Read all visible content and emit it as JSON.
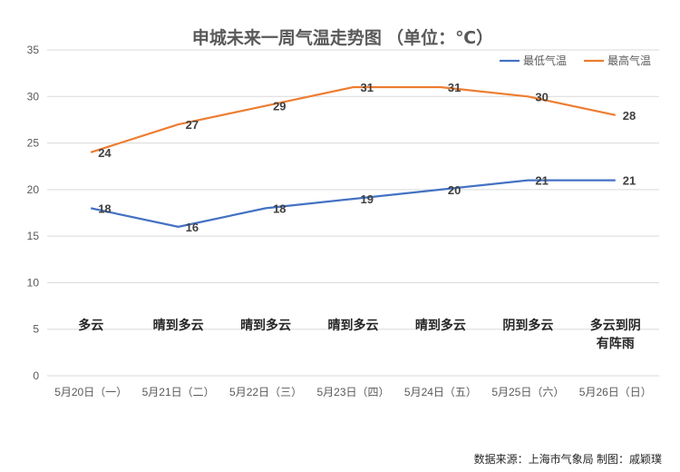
{
  "chart_data": {
    "type": "line",
    "title": "申城未来一周气温走势图   （单位：℃）",
    "categories": [
      "5月20日（一）",
      "5月21日（二）",
      "5月22日（三）",
      "5月23日（四）",
      "5月24日（五）",
      "5月25日（六）",
      "5月26日（日）"
    ],
    "series": [
      {
        "name": "最低气温",
        "values": [
          18,
          16,
          18,
          19,
          20,
          21,
          21
        ],
        "color": "#4472C4"
      },
      {
        "name": "最高气温",
        "values": [
          24,
          27,
          29,
          31,
          31,
          30,
          28
        ],
        "color": "#ED7D31"
      }
    ],
    "weather": [
      [
        "多云"
      ],
      [
        "晴到多云"
      ],
      [
        "晴到多云"
      ],
      [
        "晴到多云"
      ],
      [
        "晴到多云"
      ],
      [
        "阴到多云"
      ],
      [
        "多云到阴",
        "有阵雨"
      ]
    ],
    "yticks": [
      0,
      5,
      10,
      15,
      20,
      25,
      30,
      35
    ],
    "ylim": [
      0,
      35
    ],
    "grid": true,
    "legend": "top-right"
  },
  "source_text": "数据来源：上海市气象局    制图：戚颖璞"
}
